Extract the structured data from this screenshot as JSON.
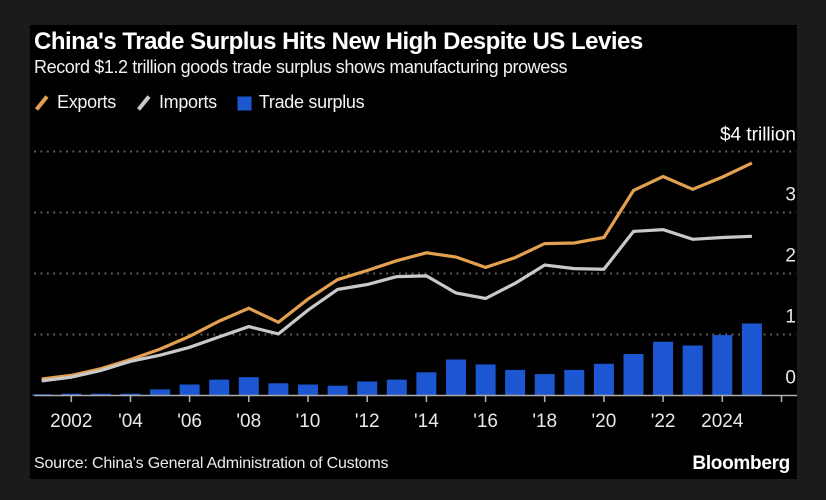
{
  "header": {
    "title": "China's Trade Surplus Hits New High Despite US Levies",
    "subtitle": "Record $1.2 trillion goods trade surplus shows manufacturing prowess"
  },
  "legend": {
    "items": [
      {
        "label": "Exports",
        "swatch": "line",
        "color": "#E2A050"
      },
      {
        "label": "Imports",
        "swatch": "line",
        "color": "#C9C9C9"
      },
      {
        "label": "Trade surplus",
        "swatch": "square",
        "color": "#1C57D1"
      }
    ]
  },
  "footer": {
    "source": "Source: China's General Administration of Customs",
    "brand": "Bloomberg"
  },
  "colors": {
    "background": "#000000",
    "page_background": "#1b1b1b",
    "exports_orange": "#E2A050",
    "imports_gray": "#C9C9C9",
    "surplus_blue": "#1C57D1",
    "gridline_gray": "#5c5c5c",
    "axis_gray": "#ABABB0",
    "text_white": "#ffffff"
  },
  "chart_data": {
    "type": "combo",
    "x": [
      2001,
      2002,
      2003,
      2004,
      2005,
      2006,
      2007,
      2008,
      2009,
      2010,
      2011,
      2012,
      2013,
      2014,
      2015,
      2016,
      2017,
      2018,
      2019,
      2020,
      2021,
      2022,
      2023,
      2024,
      2025
    ],
    "series": [
      {
        "name": "Exports",
        "type": "line",
        "color": "#E2A050",
        "values": [
          0.27,
          0.33,
          0.44,
          0.59,
          0.76,
          0.97,
          1.22,
          1.43,
          1.2,
          1.58,
          1.9,
          2.05,
          2.21,
          2.34,
          2.27,
          2.1,
          2.26,
          2.49,
          2.5,
          2.59,
          3.36,
          3.59,
          3.38,
          3.58,
          3.81
        ]
      },
      {
        "name": "Imports",
        "type": "line",
        "color": "#C9C9C9",
        "values": [
          0.24,
          0.3,
          0.41,
          0.56,
          0.66,
          0.79,
          0.96,
          1.13,
          1.01,
          1.4,
          1.74,
          1.82,
          1.95,
          1.96,
          1.68,
          1.59,
          1.84,
          2.14,
          2.08,
          2.07,
          2.69,
          2.72,
          2.56,
          2.59,
          2.61
        ]
      },
      {
        "name": "Trade surplus",
        "type": "bar",
        "color": "#1C57D1",
        "values": [
          0.02,
          0.03,
          0.03,
          0.03,
          0.1,
          0.18,
          0.26,
          0.3,
          0.2,
          0.18,
          0.16,
          0.23,
          0.26,
          0.38,
          0.59,
          0.51,
          0.42,
          0.35,
          0.42,
          0.52,
          0.68,
          0.88,
          0.82,
          0.99,
          1.18
        ]
      }
    ],
    "title": "China's Trade Surplus Hits New High Despite US Levies",
    "subtitle": "Record $1.2 trillion goods trade surplus shows manufacturing prowess",
    "units": "trillion USD",
    "ylim": [
      0,
      4
    ],
    "grid": "dotted-horizontal",
    "legend_position": "top-left",
    "y_axis": {
      "side": "right",
      "top_label": "$4 trillion",
      "gridline_values": [
        1,
        2,
        3,
        4
      ],
      "label_values": [
        0,
        1,
        2,
        3
      ]
    },
    "x_axis": {
      "tick_years": [
        2002,
        2004,
        2006,
        2008,
        2010,
        2012,
        2014,
        2016,
        2018,
        2020,
        2022,
        2024,
        2026
      ],
      "labels": {
        "2002": "2002",
        "2004": "'04",
        "2006": "'06",
        "2008": "'08",
        "2010": "'10",
        "2012": "'12",
        "2014": "'14",
        "2016": "'16",
        "2018": "'18",
        "2020": "'20",
        "2022": "'22",
        "2024": "2024",
        "2026": ""
      }
    }
  }
}
